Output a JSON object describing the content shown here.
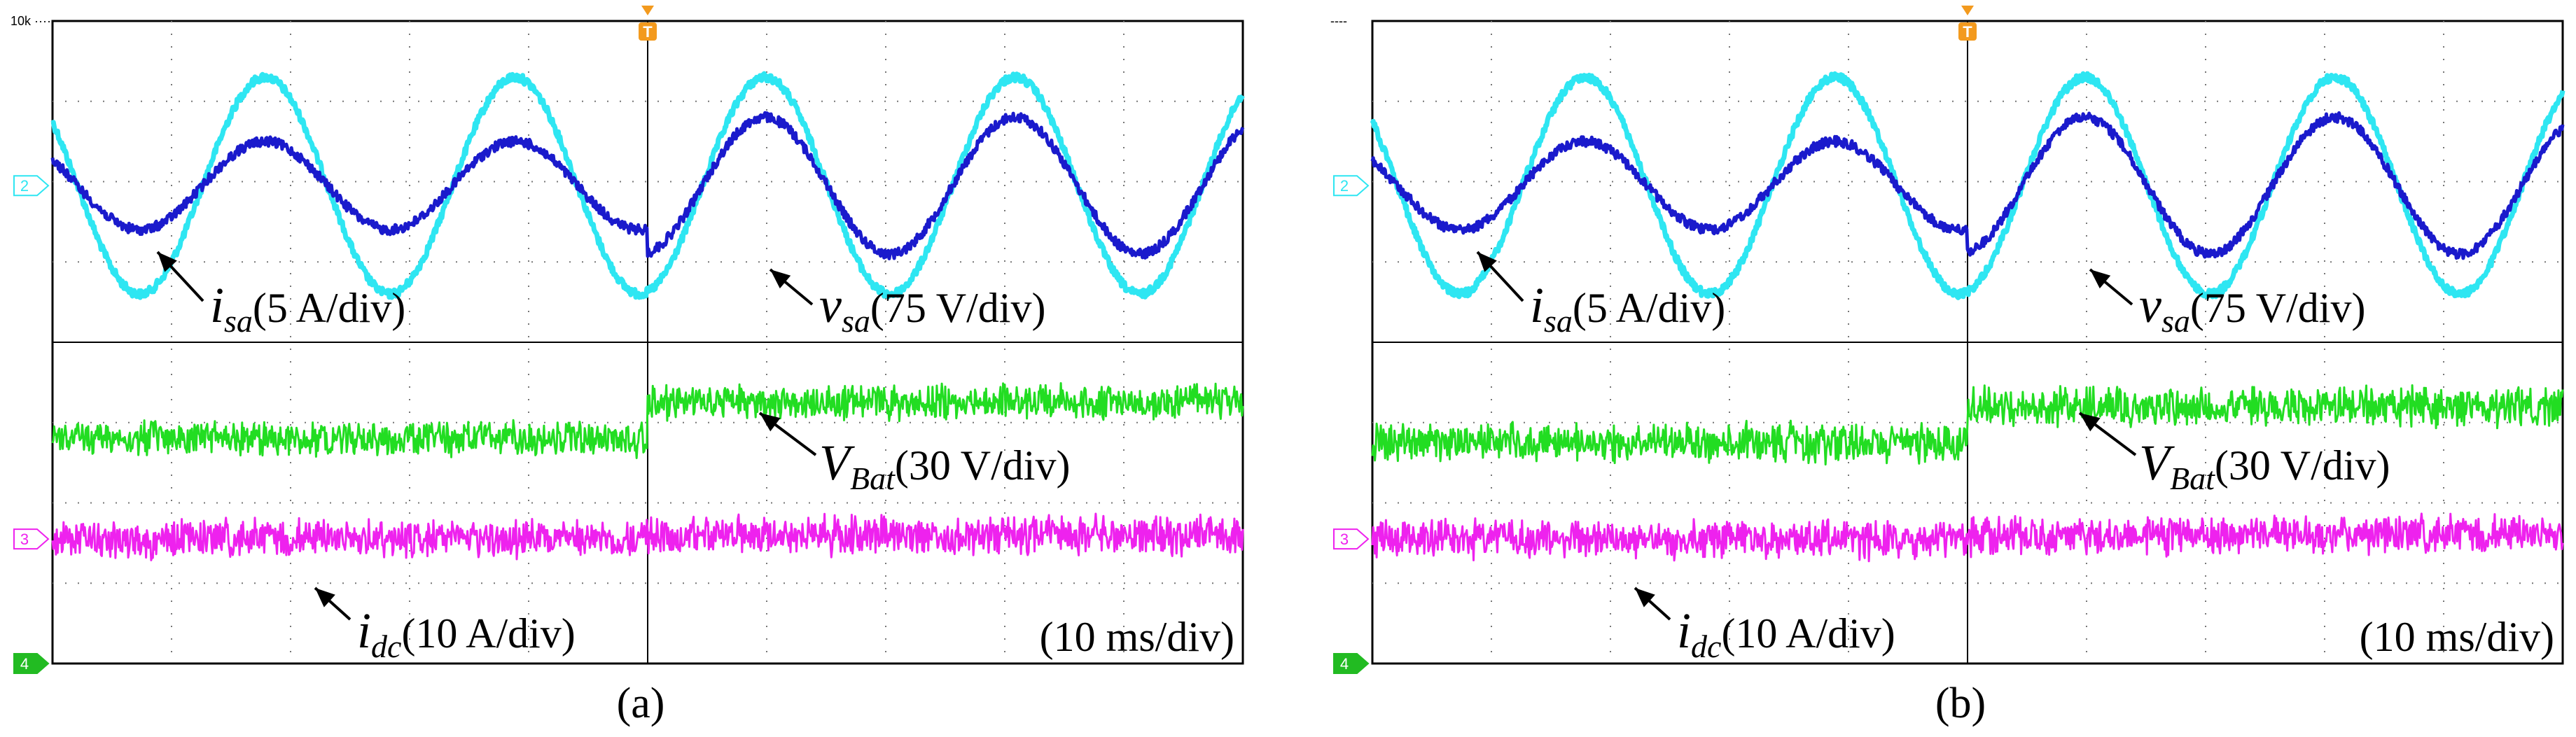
{
  "chart_data": [
    {
      "type": "line",
      "caption": "(a)",
      "timebase": "(10 ms/div)",
      "trigger_marker": "T",
      "header_text": "10k ····",
      "grid": {
        "hdiv": 10,
        "vdiv": 8
      },
      "step_at_division": 5,
      "series": [
        {
          "name": "v_sa",
          "channel": "2",
          "kind": "sine",
          "color": "#2ee6f2",
          "scale": "75 V/div",
          "center_div": 2.05,
          "amplitude_div": [
            1.35,
            1.35
          ],
          "period_div": 2.1,
          "phase": 0.15,
          "noise_div": 0.05,
          "label": {
            "main": "v",
            "sub": "sa",
            "rest": "(75 V/div)"
          }
        },
        {
          "name": "i_sa",
          "channel": "",
          "kind": "sine",
          "color": "#1a1acc",
          "scale": "5 A/div",
          "center_div": 2.05,
          "amplitude_div": [
            0.55,
            0.85
          ],
          "period_div": 2.1,
          "phase": 0.15,
          "noise_div": 0.06,
          "label": {
            "main": "i",
            "sub": "sa",
            "rest": "(5 A/div)"
          }
        },
        {
          "name": "V_Bat",
          "channel": "",
          "kind": "noise",
          "color": "#22dd22",
          "scale": "30 V/div",
          "level_div": [
            5.2,
            4.75
          ],
          "noise_div": 0.18,
          "label": {
            "main": "V",
            "sub": "Bat",
            "rest": "(30 V/div)"
          }
        },
        {
          "name": "i_dc",
          "channel": "3",
          "kind": "noise",
          "color": "#ee22ee",
          "scale": "10 A/div",
          "level_div": [
            6.45,
            6.4
          ],
          "noise_div": 0.2,
          "label": {
            "main": "i",
            "sub": "dc",
            "rest": "(10 A/div)"
          }
        }
      ],
      "channel_markers": [
        "2",
        "3",
        "4"
      ]
    },
    {
      "type": "line",
      "caption": "(b)",
      "timebase": "(10 ms/div)",
      "trigger_marker": "T",
      "header_text": "----",
      "grid": {
        "hdiv": 10,
        "vdiv": 8
      },
      "step_at_division": 5,
      "series": [
        {
          "name": "v_sa",
          "channel": "2",
          "kind": "sine",
          "color": "#2ee6f2",
          "scale": "75 V/div",
          "center_div": 2.05,
          "amplitude_div": [
            1.35,
            1.35
          ],
          "period_div": 2.1,
          "phase": 0.15,
          "noise_div": 0.05,
          "label": {
            "main": "v",
            "sub": "sa",
            "rest": "(75 V/div)"
          }
        },
        {
          "name": "i_sa",
          "channel": "",
          "kind": "sine",
          "color": "#1a1acc",
          "scale": "5 A/div",
          "center_div": 2.05,
          "amplitude_div": [
            0.55,
            0.85
          ],
          "period_div": 2.1,
          "phase": 0.15,
          "noise_div": 0.06,
          "label": {
            "main": "i",
            "sub": "sa",
            "rest": "(5 A/div)"
          }
        },
        {
          "name": "V_Bat",
          "channel": "",
          "kind": "noise",
          "color": "#22dd22",
          "scale": "30 V/div",
          "level_div": [
            5.25,
            4.8
          ],
          "noise_div": 0.2,
          "label": {
            "main": "V",
            "sub": "Bat",
            "rest": "(30 V/div)"
          }
        },
        {
          "name": "i_dc",
          "channel": "3",
          "kind": "noise",
          "color": "#ee22ee",
          "scale": "10 A/div",
          "level_div": [
            6.45,
            6.4
          ],
          "noise_div": 0.2,
          "label": {
            "main": "i",
            "sub": "dc",
            "rest": "(10 A/div)"
          }
        }
      ],
      "channel_markers": [
        "2",
        "3",
        "4"
      ]
    }
  ]
}
